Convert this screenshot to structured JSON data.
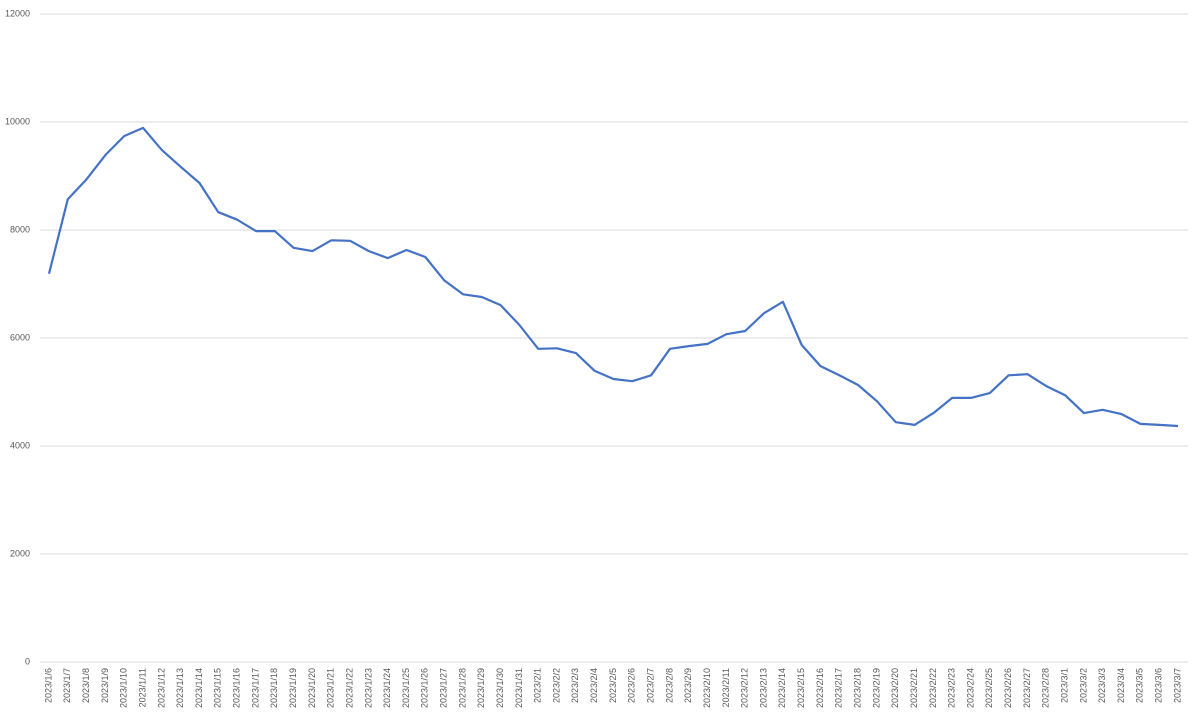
{
  "chart_data": {
    "type": "line",
    "categories": [
      "2023/1/6",
      "2023/1/7",
      "2023/1/8",
      "2023/1/9",
      "2023/1/10",
      "2023/1/11",
      "2023/1/12",
      "2023/1/13",
      "2023/1/14",
      "2023/1/15",
      "2023/1/16",
      "2023/1/17",
      "2023/1/18",
      "2023/1/19",
      "2023/1/20",
      "2023/1/21",
      "2023/1/22",
      "2023/1/23",
      "2023/1/24",
      "2023/1/25",
      "2023/1/26",
      "2023/1/27",
      "2023/1/28",
      "2023/1/29",
      "2023/1/30",
      "2023/1/31",
      "2023/2/1",
      "2023/2/2",
      "2023/2/3",
      "2023/2/4",
      "2023/2/5",
      "2023/2/6",
      "2023/2/7",
      "2023/2/8",
      "2023/2/9",
      "2023/2/10",
      "2023/2/11",
      "2023/2/12",
      "2023/2/13",
      "2023/2/14",
      "2023/2/15",
      "2023/2/16",
      "2023/2/17",
      "2023/2/18",
      "2023/2/19",
      "2023/2/20",
      "2023/2/21",
      "2023/2/22",
      "2023/2/23",
      "2023/2/24",
      "2023/2/25",
      "2023/2/26",
      "2023/2/27",
      "2023/2/28",
      "2023/3/1",
      "2023/3/2",
      "2023/3/3",
      "2023/3/4",
      "2023/3/5",
      "2023/3/6",
      "2023/3/7"
    ],
    "values": [
      7190,
      8570,
      8940,
      9390,
      9740,
      9890,
      9480,
      9170,
      8870,
      8330,
      8190,
      7980,
      7980,
      7670,
      7610,
      7810,
      7800,
      7610,
      7480,
      7630,
      7500,
      7070,
      6810,
      6760,
      6610,
      6240,
      5800,
      5810,
      5720,
      5390,
      5240,
      5200,
      5310,
      5800,
      5850,
      5890,
      6070,
      6130,
      6460,
      6670,
      5870,
      5480,
      5310,
      5130,
      4830,
      4440,
      4390,
      4610,
      4890,
      4890,
      4980,
      5310,
      5330,
      5110,
      4940,
      4610,
      4670,
      4590,
      4410,
      4390,
      4370
    ],
    "color": "#4472c4",
    "ylim": [
      0,
      12000
    ],
    "yticks": [
      0,
      2000,
      4000,
      6000,
      8000,
      10000,
      12000
    ],
    "grid": true
  }
}
